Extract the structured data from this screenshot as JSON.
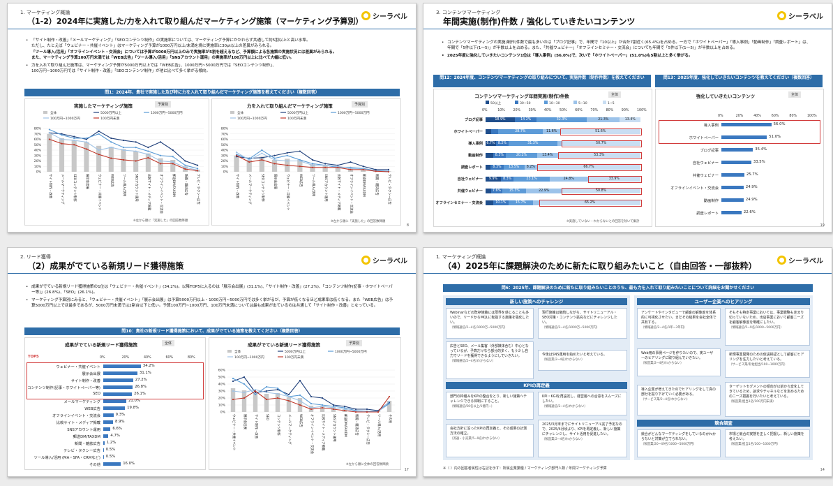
{
  "slides": {
    "s1": {
      "section": "1. マーケティング概論",
      "title": "（1-2）2024年に実施した/力を入れて取り組んだマーケティング施策（マーケティング予算別）",
      "logo": "シーラベル",
      "bullets": [
        "「サイト制作・改善」「メールマーケティング」「SEOコンテンツ制作」の実施率については、マーケティング予算にかかわらず共通して約5割以上と高い水準。",
        "ただし、たとえば「ウェビナー・共催イベント」はマーケティング予算が1000万円以上/未満を境に実施率に30pt以上の差異がみられる。",
        "「ツール導入/活用」「オフラインイベント・交流会」については予算が5000万円以上のみで実施率が5割を超えるなど、予算額による各施策の実施状況には差異がみられる。",
        "また、マーケティング予算100万円未満では「WEB広告」「ツール導入/活用」「SNSアカウント運用」の実施率が100万円以上に比べて大幅に低い。",
        "力を入れて取り組んだ施策は、マーケティング予算が5000万円以上では「WEB広告」、1000万円~5000万円では「SEOコンテンツ制作」、",
        "100万円~1000万円では「サイト制作・改善」「SEOコンテンツ制作」が他に比べて多く挙がる傾向。"
      ],
      "question": "問1：2024年、貴社で実施した及び特に力を入れて取り組んだマーケティング施策を教えてください（複数回答）",
      "chart_left_title": "実施したマーケティング施策",
      "chart_right_title": "力を入れて取り組んだマーケティング施策",
      "badge": "予算別",
      "note": "※左から順に「実施した」の回答数降順",
      "page": "8"
    },
    "s2": {
      "section": "3. コンテンツマーケティング",
      "title": "年間実施(制作)件数 / 強化していきたいコンテンツ",
      "logo": "シーラベル",
      "bullets": [
        "コンテンツマーケティングの実施(制作)件数で最も多いのは「ブログ記事」で、年間で「10以上」が合計7割近く(65.4%)を占める。一方で「ホワイトペーパー」「導入事例」「動画制作」「調査レポート」は、年間で「5件以下(1～5)」が半数以上を占める。また、「共催ウェビナー」「オフラインセミナー・交流会」についても年間で「5件以下(1～5)」が半数以上を占める。",
        "2025年度に強化していきたいコンテンツ1位は「導入事例」(56.0%)で、次いで「ホワイトペーパー」(51.0%)も5割以上と多く挙がる。"
      ],
      "q12": "問12：2024年度、コンテンツマーケティングの取り組みについて、実施件数（制作件数）を教えてください",
      "q13": "問13：2025年度、強化していきたいコンテンツを教えてください（複数回答）",
      "left_title": "コンテンツマーケティング年間実施(制作)件数",
      "right_title": "強化していきたいコンテンツ",
      "badge": "全体",
      "note_left": "※実施していない・わからないとの回答を除いて集計",
      "page": "19"
    },
    "s3": {
      "section": "2. リード獲得",
      "title": "（2）成果がでている新規リード獲得施策",
      "logo": "シーラベル",
      "bullets": [
        "成果がでている新規リード獲得施策の1位は「ウェビナー・共催イベント」(34.2%)。以降TOP5に入るのは「展示会出展」(31.1%)、「サイト制作・改善」(27.2%)、「コンテンツ制作(記事・ホワイトペーパー等)」(26.8%)、「SEO」(26.1%)。",
        "マーケティング予算別にみると、「ウェビナー・共催イベント」「展示会出展」は予算5000万円以上・1000万円~5000万円では多く挙がるが、予算が低くなるほど成果率は低くなる。また「WEB広告」は予算5000万円以上でほ最多であるが、5000万円未満では2割台以下と低い。予算100万円~1000万円、100万円未満については最も成果が出ているのは共通して「サイト制作・改善」となっている。"
      ],
      "question": "問10：貴社の新規リード獲得施策において、成果がでている施策を教えてください（複数回答）",
      "left_title": "成果がでている新規リード獲得施策",
      "right_title": "成果がでている新規リード獲得施策",
      "badge_left": "全体",
      "badge_right": "予算別",
      "top5": "TOP5",
      "note": "※左から順に全体の回答数降順",
      "page": "17"
    },
    "s4": {
      "section": "1. マーケティング概論",
      "title": "（4）2025年に課題解決のために新たに取り組みたいこと（自由回答・一部抜粋）",
      "logo": "シーラベル",
      "question": "問6：2025年、課題解決のために新たに取り組みたいことのうち、最も力を入れて取り組みたいことについて詳細をお聞かせください",
      "cat_new": "新しい施策へのチャレンジ",
      "cat_user": "ユーザー企業へのヒアリング",
      "cat_kpi": "KPIの再定義",
      "cat_comp": "競合調査",
      "cards": [
        {
          "text": "Webinarなどの既存施策には限界を感じることも多いので、リードからMQLに転換する施策を強化したい。",
          "hint": "（情報通信/2~4名/1000万~5000万円）"
        },
        {
          "text": "現行施策は継続しながら、サイトリニューアル・SEO対策・コンテンツ拡充などにチャレンジしたい。",
          "hint": "（情報通信/2~4名/1000万~5000万円）"
        },
        {
          "text": "広告とSEO、メール集客（外部媒体含む）中心となっているが、予算だけなら部分的多く、もう少し自力でリードを獲得できるようにしていきたい。",
          "hint": "（情報通信/2~4名/わからない）"
        },
        {
          "text": "今後はSNS運用を始めたいと考えている。",
          "hint": "（製造業/2~4名/わからない）"
        },
        {
          "text": "部門の枠組みをKPIの整合をとり、新しい施策へチャレンジできる体制にすること。",
          "hint": "（情報通信/50名以上/1億円~）"
        },
        {
          "text": "KPI・KGIを再設定し、経営層への合意をスムーズにしたい。",
          "hint": "（情報通信/2~4名/わからない）"
        },
        {
          "text": "会社方針に沿ったKPIの再定義と、その成果の計測方法の確立。",
          "hint": "（流通・小売業/5~9名/わからない）"
        },
        {
          "text": "2025/3月末までにサイトリニューアル完了予定なので、2025/4月頃より、KPIを再定義し、新しい施策にチャレンジし、サイト活用を促進したい。",
          "hint": "（製造業/2~4名/わからない）"
        },
        {
          "text": "アンケートやインタビューで顧客の解像度を体系的に可視化させたい。まだその結果を会社全体で共有する。",
          "hint": "（情報通信/2~4名/1年~3年円）"
        },
        {
          "text": "そもそも特定事業においては、事業戦略も定まり切っていないため、出店事業において顧客ニーズを顧客解像度を明確にしたい。",
          "hint": "（情報通信/5~9名/1000~5000万円）"
        },
        {
          "text": "Web用の事例ページを作りたいので、実ユーザーのヒアリングに取り組んでいきたい。",
          "hint": "（製造業/2~4名/わからない）"
        },
        {
          "text": "新規事業開発のための仮説検証として顧客にヒアリングを注力したいと考えている。",
          "hint": "（サービス業/有佐担当/100~1000万円）"
        },
        {
          "text": "導入企業が増えてきたのでヒアリングをして真の部分を掘り下げていく必要がある。",
          "hint": "（サービス業/2~4名/わからない）"
        },
        {
          "text": "ターゲットセグメントの傾向が以前から変化してきているため、訴求やチャネルなどを定めるためのニーズ把握を行いたいと考えている。",
          "hint": "（製造業/担当1名/100万円未満）"
        },
        {
          "text": "競合がどんなマーケティングをしているのかわからないと対策が立てられない。",
          "hint": "（製造業/20~49名/1000~5000万円）"
        },
        {
          "text": "市場と競合の実態を正しく把握し、新しい施策を考えたい。",
          "hint": "（製造業/担当1名/100~1000万円）"
        }
      ],
      "footnote": "※（ ）内の回答者属性は右記を示す：所属企業業種 / マーケティング部門人数 / 年間マーケティング予算",
      "page": "14"
    }
  },
  "chart_data": [
    {
      "type": "line",
      "title": "実施したマーケティング施策",
      "categories": [
        "サイト制作・改善",
        "メールマーケティング",
        "SEOコンテンツ制作",
        "展示会出展",
        "ウェビナー・共催イベント",
        "WEB広告",
        "ツール導入/活用",
        "SNSアカウント運用",
        "比較サイト・メディア掲載",
        "オフラインイベント・交流会",
        "郵送DM/FAXDM",
        "新聞・雑誌広告",
        "テレビ・タクシー広告"
      ],
      "ylim": [
        0,
        80
      ],
      "yticks": [
        "0%",
        "10%",
        "20%",
        "30%",
        "40%",
        "50%",
        "60%",
        "70%",
        "80%"
      ],
      "series": [
        {
          "name": "全体",
          "kind": "bar",
          "color": "#c8c8c8",
          "values": [
            70,
            62,
            58,
            55,
            48,
            46,
            42,
            38,
            34,
            25,
            22,
            10,
            4
          ]
        },
        {
          "name": "5000万円以上",
          "color": "#1f3f7a",
          "values": [
            72,
            70,
            65,
            60,
            75,
            62,
            58,
            55,
            45,
            55,
            40,
            20,
            12
          ]
        },
        {
          "name": "1000万円~5000万円",
          "color": "#5a9bd5",
          "values": [
            78,
            68,
            62,
            62,
            70,
            55,
            45,
            45,
            38,
            30,
            28,
            12,
            6
          ]
        },
        {
          "name": "100万円~1000万円",
          "color": "#9fc3e6",
          "values": [
            72,
            60,
            58,
            55,
            40,
            45,
            40,
            38,
            32,
            20,
            18,
            8,
            3
          ]
        },
        {
          "name": "100万円未満",
          "color": "#c0392b",
          "values": [
            60,
            52,
            50,
            42,
            32,
            25,
            22,
            20,
            26,
            15,
            15,
            5,
            2
          ]
        }
      ]
    },
    {
      "type": "line",
      "title": "力を入れて取り組んだマーケティング施策",
      "categories": [
        "サイト制作・改善",
        "メールマーケティング",
        "SEOコンテンツ制作",
        "展示会出展",
        "ウェビナー・共催イベント",
        "WEB広告",
        "ツール導入/活用",
        "SNSアカウント運用",
        "比較サイト・メディア掲載",
        "オフラインイベント・交流会",
        "郵送DM/FAXDM",
        "新聞・雑誌広告",
        "テレビ・タクシー広告"
      ],
      "ylim": [
        0,
        80
      ],
      "yticks": [
        "0%",
        "10%",
        "20%",
        "30%",
        "40%",
        "50%",
        "60%",
        "70%",
        "80%"
      ],
      "series": [
        {
          "name": "全体",
          "kind": "bar",
          "color": "#c8c8c8",
          "values": [
            30,
            22,
            28,
            22,
            24,
            22,
            14,
            12,
            10,
            8,
            6,
            2,
            1
          ]
        },
        {
          "name": "5000万円以上",
          "color": "#1f3f7a",
          "values": [
            28,
            25,
            26,
            30,
            35,
            38,
            22,
            15,
            12,
            18,
            10,
            4,
            4
          ]
        },
        {
          "name": "1000万円~5000万円",
          "color": "#5a9bd5",
          "values": [
            32,
            24,
            40,
            25,
            30,
            22,
            15,
            12,
            8,
            8,
            6,
            2,
            1
          ]
        },
        {
          "name": "100万円~1000万円",
          "color": "#9fc3e6",
          "values": [
            36,
            22,
            34,
            22,
            20,
            20,
            12,
            12,
            10,
            6,
            5,
            1,
            0
          ]
        },
        {
          "name": "100万円未満",
          "color": "#c0392b",
          "values": [
            30,
            18,
            22,
            15,
            12,
            10,
            8,
            8,
            8,
            4,
            4,
            1,
            0
          ]
        }
      ]
    },
    {
      "type": "bar",
      "orientation": "stacked-horizontal",
      "title": "コンテンツマーケティング年間実施(制作)件数",
      "categories": [
        "ブログ記事",
        "ホワイトペーパー",
        "導入事例",
        "動画制作",
        "調査レポート",
        "自社ウェビナー",
        "共催ウェビナー",
        "オフラインセミナー・交流会"
      ],
      "xticks": [
        "0%",
        "10%",
        "20%",
        "30%",
        "40%",
        "50%",
        "60%",
        "70%",
        "80%",
        "90%",
        "100%"
      ],
      "series": [
        {
          "name": "50以上",
          "color": "#1f4e8c",
          "values": [
            18.9,
            3.8,
            6.7,
            4.8,
            3.3,
            9.9,
            3.4,
            4.8
          ]
        },
        {
          "name": "30~50",
          "color": "#3a78c0",
          "values": [
            14.2,
            4.3,
            8.2,
            8.3,
            8.3,
            8.3,
            7.6,
            10.1
          ]
        },
        {
          "name": "10~30",
          "color": "#5d9bd8",
          "values": [
            32.3,
            28.7,
            31.3,
            20.2,
            13.5,
            23.1,
            15.3,
            15.7
          ]
        },
        {
          "name": "5~10",
          "color": "#9cc3ea",
          "values": [
            21.3,
            11.6,
            3.1,
            13.4,
            8.2,
            24.8,
            22.9,
            4.2
          ]
        },
        {
          "name": "1~5",
          "color": "#c9def3",
          "values": [
            13.4,
            51.6,
            50.7,
            53.3,
            66.7,
            33.9,
            50.8,
            65.2
          ]
        }
      ]
    },
    {
      "type": "bar",
      "orientation": "horizontal",
      "title": "強化していきたいコンテンツ",
      "categories": [
        "導入事例",
        "ホワイトペーパー",
        "ブログ記事",
        "自社ウェビナー",
        "共催ウェビナー",
        "オフラインイベント・交流会",
        "動画制作",
        "調査レポート"
      ],
      "values": [
        56.0,
        51.0,
        35.4,
        33.5,
        25.7,
        24.9,
        24.9,
        22.6
      ],
      "xticks": [
        "0%",
        "20%",
        "40%",
        "60%",
        "80%",
        "100%"
      ],
      "xlim": [
        0,
        100
      ]
    },
    {
      "type": "bar",
      "orientation": "horizontal",
      "title": "成果がでている新規リード獲得施策",
      "categories": [
        "ウェビナー・共催イベント",
        "展示会出展",
        "サイト制作・改善",
        "コンテンツ制作(記事・ホワイトペーパー等)",
        "SEO",
        "メールマーケティング",
        "WEB広告",
        "オフラインイベント・交流会",
        "比較サイト・メディア掲載",
        "SNSアカウント運用",
        "郵送DM/FAXDM",
        "新聞・雑誌広告",
        "テレビ・タクシー広告",
        "ツール導入/活用 (MA・SFA・CRMなど)",
        "その他"
      ],
      "values": [
        34.2,
        31.1,
        27.2,
        26.8,
        26.1,
        21.0,
        19.8,
        9.3,
        8.9,
        6.6,
        4.7,
        1.2,
        0.5,
        0.5,
        16.0
      ],
      "xticks": [
        "0%",
        "20%",
        "40%",
        "60%",
        "80%"
      ],
      "xlim": [
        0,
        80
      ]
    },
    {
      "type": "line",
      "title": "成果がでている新規リード獲得施策",
      "categories": [
        "ウェビナー・共催イベント",
        "展示会出展",
        "サイト制作・改善",
        "SEO",
        "コンテンツ制作",
        "メールマーケティング",
        "WEB広告",
        "オフラインイベント・交流会",
        "比較サイト・メディア掲載",
        "SNSアカウント運用",
        "郵送DM/FAXDM",
        "新聞・雑誌広告",
        "テレビ・タクシー広告",
        "ツール導入/活用",
        "その他"
      ],
      "ylim": [
        0,
        60
      ],
      "yticks": [
        "0%",
        "10%",
        "20%",
        "30%",
        "40%",
        "50%",
        "60%"
      ],
      "series": [
        {
          "name": "全体",
          "kind": "bar",
          "color": "#c8c8c8",
          "values": [
            34,
            31,
            27,
            26,
            27,
            21,
            20,
            9,
            9,
            7,
            5,
            1,
            1,
            1,
            16
          ]
        },
        {
          "name": "5000万円以上",
          "color": "#1f3f7a",
          "values": [
            44,
            50,
            28,
            30,
            32,
            25,
            45,
            22,
            20,
            10,
            8,
            4,
            4,
            2,
            14
          ]
        },
        {
          "name": "1000万円~5000万円",
          "color": "#5a9bd5",
          "values": [
            48,
            40,
            25,
            36,
            34,
            22,
            24,
            12,
            10,
            8,
            6,
            2,
            1,
            1,
            12
          ]
        },
        {
          "name": "100万円~1000万円",
          "color": "#9fc3e6",
          "values": [
            30,
            28,
            32,
            28,
            26,
            22,
            16,
            6,
            8,
            6,
            4,
            1,
            0,
            0,
            15
          ]
        },
        {
          "name": "100万円未満",
          "color": "#c0392b",
          "values": [
            18,
            20,
            30,
            18,
            20,
            16,
            10,
            4,
            6,
            4,
            2,
            0,
            0,
            0,
            22
          ]
        }
      ]
    }
  ]
}
